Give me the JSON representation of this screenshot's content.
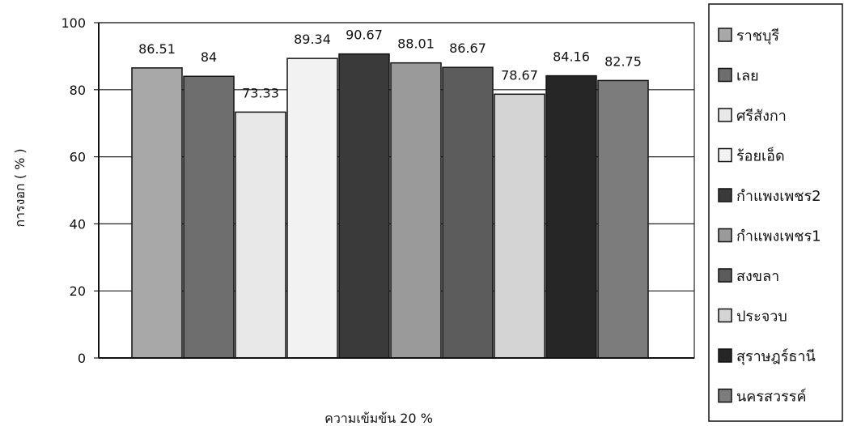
{
  "chart_data": {
    "type": "bar",
    "xlabel": "ความเข้มข้น 20 %",
    "ylabel": "การงอก ( % )",
    "ylim": [
      0,
      100
    ],
    "yticks": [
      0,
      20,
      40,
      60,
      80,
      100
    ],
    "grid": "horizontal",
    "legend_position": "right",
    "series": [
      {
        "name": "ราชบุรี",
        "value": 86.51,
        "label": "86.51",
        "color": "#a8a8a8"
      },
      {
        "name": "เลย",
        "value": 84,
        "label": "84",
        "color": "#6e6e6e"
      },
      {
        "name": "ศรีสังกา",
        "value": 73.33,
        "label": "73.33",
        "color": "#e8e8e8"
      },
      {
        "name": "ร้อยเอ็ด",
        "value": 89.34,
        "label": "89.34",
        "color": "#f2f2f2"
      },
      {
        "name": "กำแพงเพชร2",
        "value": 90.67,
        "label": "90.67",
        "color": "#3a3a3a"
      },
      {
        "name": "กำแพงเพชร1",
        "value": 88.01,
        "label": "88.01",
        "color": "#9a9a9a"
      },
      {
        "name": "สงขลา",
        "value": 86.67,
        "label": "86.67",
        "color": "#5c5c5c"
      },
      {
        "name": "ประจวบ",
        "value": 78.67,
        "label": "78.67",
        "color": "#d4d4d4"
      },
      {
        "name": "สุราษฎร์ธานี",
        "value": 84.16,
        "label": "84.16",
        "color": "#262626"
      },
      {
        "name": "นครสวรรค์",
        "value": 82.75,
        "label": "82.75",
        "color": "#7c7c7c"
      }
    ]
  }
}
